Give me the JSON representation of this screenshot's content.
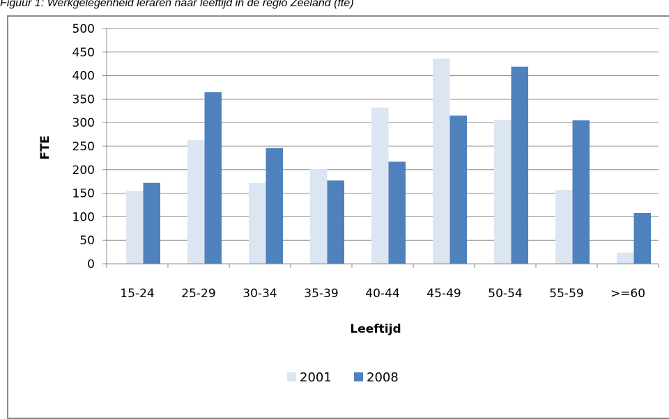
{
  "caption": "Figuur 1: Werkgelegenheid leraren naar leeftijd in de regio Zeeland (fte)",
  "chart_data": {
    "type": "bar",
    "xlabel": "Leeftijd",
    "ylabel": "FTE",
    "ylim": [
      0,
      500
    ],
    "yticks": [
      0,
      50,
      100,
      150,
      200,
      250,
      300,
      350,
      400,
      450,
      500
    ],
    "grid": true,
    "legend_position": "bottom",
    "categories": [
      "15-24",
      "25-29",
      "30-34",
      "35-39",
      "40-44",
      "45-49",
      "50-54",
      "55-59",
      ">=60"
    ],
    "series": [
      {
        "name": "2001",
        "color": "#dce6f2",
        "values": [
          155,
          263,
          172,
          201,
          332,
          436,
          306,
          157,
          24
        ]
      },
      {
        "name": "2008",
        "color": "#4f81bd",
        "values": [
          172,
          365,
          246,
          177,
          217,
          315,
          419,
          305,
          108
        ]
      }
    ]
  }
}
